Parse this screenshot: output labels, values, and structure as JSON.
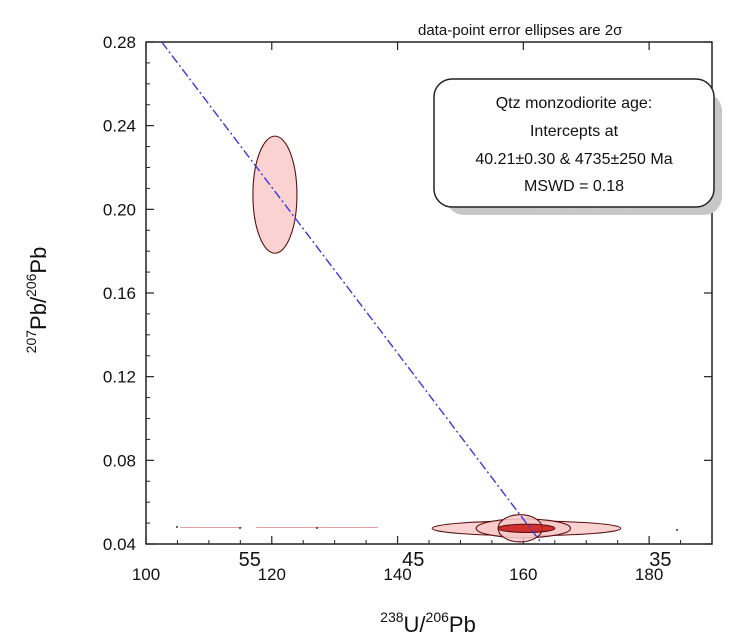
{
  "chart_data": {
    "type": "scatter",
    "xlabel": {
      "sup1": "238",
      "base1": "U/",
      "sup2": "206",
      "base2": "Pb"
    },
    "ylabel": {
      "sup1": "207",
      "base1": "Pb/",
      "sup2": "206",
      "base2": "Pb"
    },
    "xlim": [
      100,
      190
    ],
    "ylim": [
      0.04,
      0.28
    ],
    "x_ticks": [
      100,
      120,
      140,
      160,
      180
    ],
    "x_tick_labels": [
      "100",
      "120",
      "140",
      "160",
      "180"
    ],
    "y_ticks": [
      0.04,
      0.08,
      0.12,
      0.16,
      0.2,
      0.24,
      0.28
    ],
    "y_tick_labels": [
      "0.04",
      "0.08",
      "0.12",
      "0.16",
      "0.20",
      "0.24",
      "0.28"
    ],
    "age_labels": [
      {
        "text": "55",
        "x": 116.5
      },
      {
        "text": "45",
        "x": 142.5
      },
      {
        "text": "35",
        "x": 181.8
      }
    ],
    "annotation": "data-point error ellipses are 2σ",
    "result_box": {
      "lines": [
        "Qtz monzodiorite age:",
        "Intercepts at",
        "40.21±0.30 & 4735±250 Ma",
        "MSWD = 0.18"
      ],
      "shadow_text": "MSWD = 0.18"
    },
    "regression_line": {
      "x": [
        102.5,
        163
      ],
      "y": [
        0.28,
        0.04
      ]
    },
    "ellipses": [
      {
        "cx": 120.5,
        "cy": 0.207,
        "rx": 3.5,
        "ry": 0.028
      },
      {
        "cx": 160.5,
        "cy": 0.0475,
        "rx": 15.0,
        "ry": 0.0035
      },
      {
        "cx": 160.0,
        "cy": 0.0475,
        "rx": 7.5,
        "ry": 0.0045
      },
      {
        "cx": 159.5,
        "cy": 0.0475,
        "rx": 3.5,
        "ry": 0.0065
      },
      {
        "cx": 160.5,
        "cy": 0.0475,
        "rx": 4.5,
        "ry": 0.002
      }
    ],
    "colors": {
      "ellipse_fill": "#f9caca",
      "ellipse_stroke": "#5a1010",
      "ellipse_core": "#cc1f1f",
      "line": "#3a3ad8",
      "frame": "#222222"
    }
  }
}
